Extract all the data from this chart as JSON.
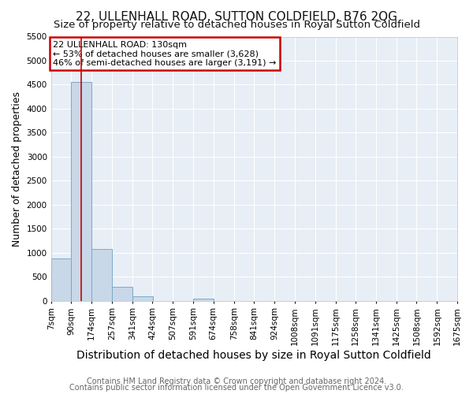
{
  "title1": "22, ULLENHALL ROAD, SUTTON COLDFIELD, B76 2QG",
  "title2": "Size of property relative to detached houses in Royal Sutton Coldfield",
  "xlabel": "Distribution of detached houses by size in Royal Sutton Coldfield",
  "ylabel": "Number of detached properties",
  "bins": [
    7,
    90,
    174,
    257,
    341,
    424,
    507,
    591,
    674,
    758,
    841,
    924,
    1008,
    1091,
    1175,
    1258,
    1341,
    1425,
    1508,
    1592,
    1675
  ],
  "bin_labels": [
    "7sqm",
    "90sqm",
    "174sqm",
    "257sqm",
    "341sqm",
    "424sqm",
    "507sqm",
    "591sqm",
    "674sqm",
    "758sqm",
    "841sqm",
    "924sqm",
    "1008sqm",
    "1091sqm",
    "1175sqm",
    "1258sqm",
    "1341sqm",
    "1425sqm",
    "1508sqm",
    "1592sqm",
    "1675sqm"
  ],
  "values": [
    880,
    4550,
    1070,
    290,
    90,
    0,
    0,
    50,
    0,
    0,
    0,
    0,
    0,
    0,
    0,
    0,
    0,
    0,
    0,
    0
  ],
  "bar_color": "#c8d8e8",
  "bar_edge_color": "#7aaac8",
  "property_line_x": 130,
  "property_line_color": "#cc0000",
  "ylim": [
    0,
    5500
  ],
  "yticks": [
    0,
    500,
    1000,
    1500,
    2000,
    2500,
    3000,
    3500,
    4000,
    4500,
    5000,
    5500
  ],
  "annotation_text": "22 ULLENHALL ROAD: 130sqm\n← 53% of detached houses are smaller (3,628)\n46% of semi-detached houses are larger (3,191) →",
  "annotation_box_color": "#cc0000",
  "footer1": "Contains HM Land Registry data © Crown copyright and database right 2024.",
  "footer2": "Contains public sector information licensed under the Open Government Licence v3.0.",
  "plot_bg_color": "#e8eef5",
  "fig_bg_color": "#ffffff",
  "grid_color": "#ffffff",
  "title1_fontsize": 11,
  "title2_fontsize": 9.5,
  "xlabel_fontsize": 10,
  "ylabel_fontsize": 9,
  "tick_fontsize": 7.5,
  "annotation_fontsize": 8,
  "footer_fontsize": 7
}
